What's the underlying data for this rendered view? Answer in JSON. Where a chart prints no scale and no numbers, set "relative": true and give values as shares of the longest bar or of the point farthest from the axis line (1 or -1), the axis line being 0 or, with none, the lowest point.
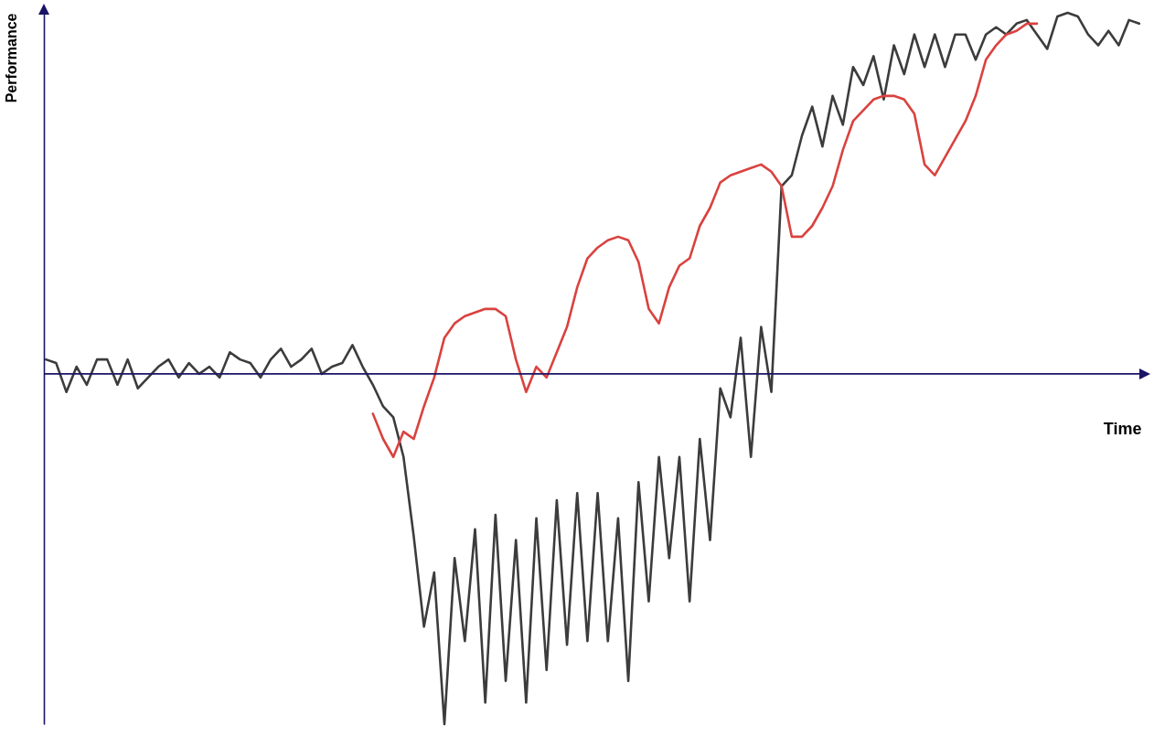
{
  "chart_data": {
    "type": "line",
    "xlabel": "Time",
    "ylabel": "Performance",
    "relative": true,
    "grid": false,
    "ref_lines": [
      {
        "axis": "y",
        "value": 0,
        "color": "#1a1466"
      }
    ],
    "marker": "none",
    "line_style": "solid",
    "categories": [
      null,
      null,
      null,
      null,
      null,
      null,
      null,
      null,
      null,
      null,
      null,
      null,
      null,
      null,
      null,
      null,
      null,
      null,
      null,
      null,
      null,
      null,
      null,
      null,
      null,
      null,
      null,
      null,
      null,
      null,
      null,
      null,
      null,
      null,
      null,
      null,
      null,
      null,
      null,
      null,
      null,
      null,
      null,
      null,
      null,
      null,
      null,
      null,
      null,
      null,
      null,
      null,
      null,
      null,
      null,
      null,
      null,
      null,
      null,
      null,
      null,
      null,
      null,
      null,
      null,
      null,
      null,
      null,
      null,
      null,
      null,
      null,
      null,
      null,
      null,
      null,
      null,
      null,
      null,
      null,
      null,
      null,
      null,
      null,
      null,
      null,
      null,
      null,
      null,
      null,
      null,
      null,
      null,
      null,
      null,
      null,
      null,
      null,
      null,
      null,
      null,
      null,
      null,
      null,
      null,
      null,
      null,
      null
    ],
    "series": [
      {
        "color": "#3c3c3c",
        "values": [
          0.04,
          0.03,
          -0.05,
          0.02,
          -0.03,
          0.04,
          0.04,
          -0.03,
          0.04,
          -0.04,
          -0.01,
          0.02,
          0.04,
          -0.01,
          0.03,
          0,
          0.02,
          -0.01,
          0.06,
          0.04,
          0.03,
          -0.01,
          0.04,
          0.07,
          0.02,
          0.04,
          0.07,
          0,
          0.02,
          0.03,
          0.08,
          0.02,
          -0.03,
          -0.09,
          -0.12,
          -0.23,
          -0.45,
          -0.7,
          -0.55,
          -0.97,
          -0.51,
          -0.74,
          -0.43,
          -0.91,
          -0.39,
          -0.85,
          -0.46,
          -0.91,
          -0.4,
          -0.82,
          -0.35,
          -0.75,
          -0.33,
          -0.74,
          -0.33,
          -0.74,
          -0.4,
          -0.85,
          -0.3,
          -0.63,
          -0.23,
          -0.51,
          -0.23,
          -0.63,
          -0.18,
          -0.46,
          -0.04,
          -0.12,
          0.1,
          -0.23,
          0.13,
          -0.05,
          0.52,
          0.55,
          0.66,
          0.74,
          0.63,
          0.77,
          0.69,
          0.85,
          0.8,
          0.88,
          0.76,
          0.91,
          0.83,
          0.94,
          0.85,
          0.94,
          0.85,
          0.94,
          0.94,
          0.87,
          0.94,
          0.96,
          0.94,
          0.97,
          0.98,
          0.94,
          0.9,
          0.99,
          1,
          0.99,
          0.94,
          0.91,
          0.95,
          0.91,
          0.98,
          0.97
        ]
      },
      {
        "color": "#d9423f",
        "values": [
          null,
          null,
          null,
          null,
          null,
          null,
          null,
          null,
          null,
          null,
          null,
          null,
          null,
          null,
          null,
          null,
          null,
          null,
          null,
          null,
          null,
          null,
          null,
          null,
          null,
          null,
          null,
          null,
          null,
          null,
          null,
          null,
          -0.11,
          -0.18,
          -0.23,
          -0.16,
          -0.18,
          -0.09,
          -0.01,
          0.1,
          0.14,
          0.16,
          0.17,
          0.18,
          0.18,
          0.16,
          0.04,
          -0.05,
          0.02,
          -0.01,
          0.06,
          0.13,
          0.24,
          0.32,
          0.35,
          0.37,
          0.38,
          0.37,
          0.31,
          0.18,
          0.14,
          0.24,
          0.3,
          0.32,
          0.41,
          0.46,
          0.53,
          0.55,
          0.56,
          0.57,
          0.58,
          0.56,
          0.52,
          0.38,
          0.38,
          0.41,
          0.46,
          0.52,
          0.62,
          0.7,
          0.73,
          0.76,
          0.77,
          0.77,
          0.76,
          0.72,
          0.58,
          0.55,
          0.6,
          0.65,
          0.7,
          0.77,
          0.87,
          0.91,
          0.94,
          0.95,
          0.97,
          0.97,
          null,
          null,
          null,
          null,
          null,
          null,
          null,
          null,
          null,
          null
        ]
      }
    ]
  }
}
